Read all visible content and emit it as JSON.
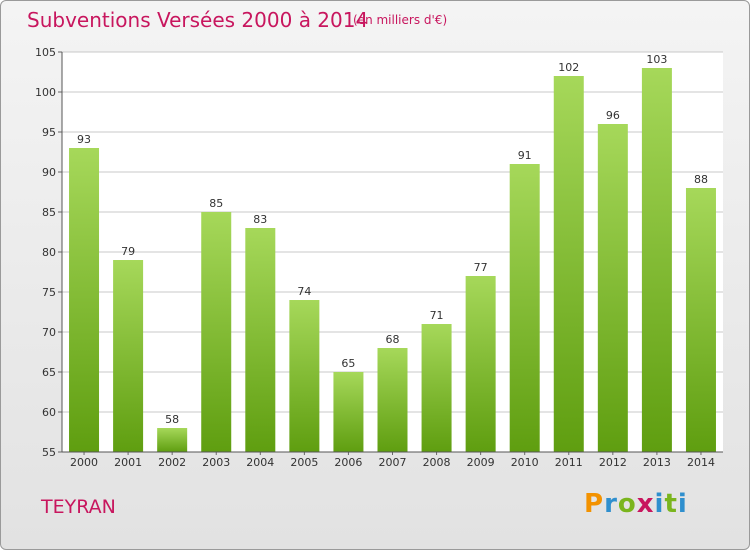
{
  "title": "Subventions Versées 2000 à 2014",
  "unit_note": "(en milliers d'€)",
  "commune": "TEYRAN",
  "logo": {
    "letters": [
      "P",
      "r",
      "o",
      "x",
      "i",
      "t",
      "i"
    ],
    "colors": [
      "#f39200",
      "#2f8fce",
      "#7ab51d",
      "#c8165e",
      "#2f8fce",
      "#7ab51d",
      "#2f8fce"
    ]
  },
  "colors": {
    "bar_top": "#a6d85a",
    "bar_bottom": "#5f9e10",
    "accent": "#c8165e"
  },
  "chart_data": {
    "type": "bar",
    "categories": [
      "2000",
      "2001",
      "2002",
      "2003",
      "2004",
      "2005",
      "2006",
      "2007",
      "2008",
      "2009",
      "2010",
      "2011",
      "2012",
      "2013",
      "2014"
    ],
    "values": [
      93,
      79,
      58,
      85,
      83,
      74,
      65,
      68,
      71,
      77,
      91,
      102,
      96,
      103,
      88
    ],
    "ylim": [
      55,
      105
    ],
    "yticks": [
      55,
      60,
      65,
      70,
      75,
      80,
      85,
      90,
      95,
      100,
      105
    ],
    "grid": true,
    "xlabel": "",
    "ylabel": ""
  }
}
